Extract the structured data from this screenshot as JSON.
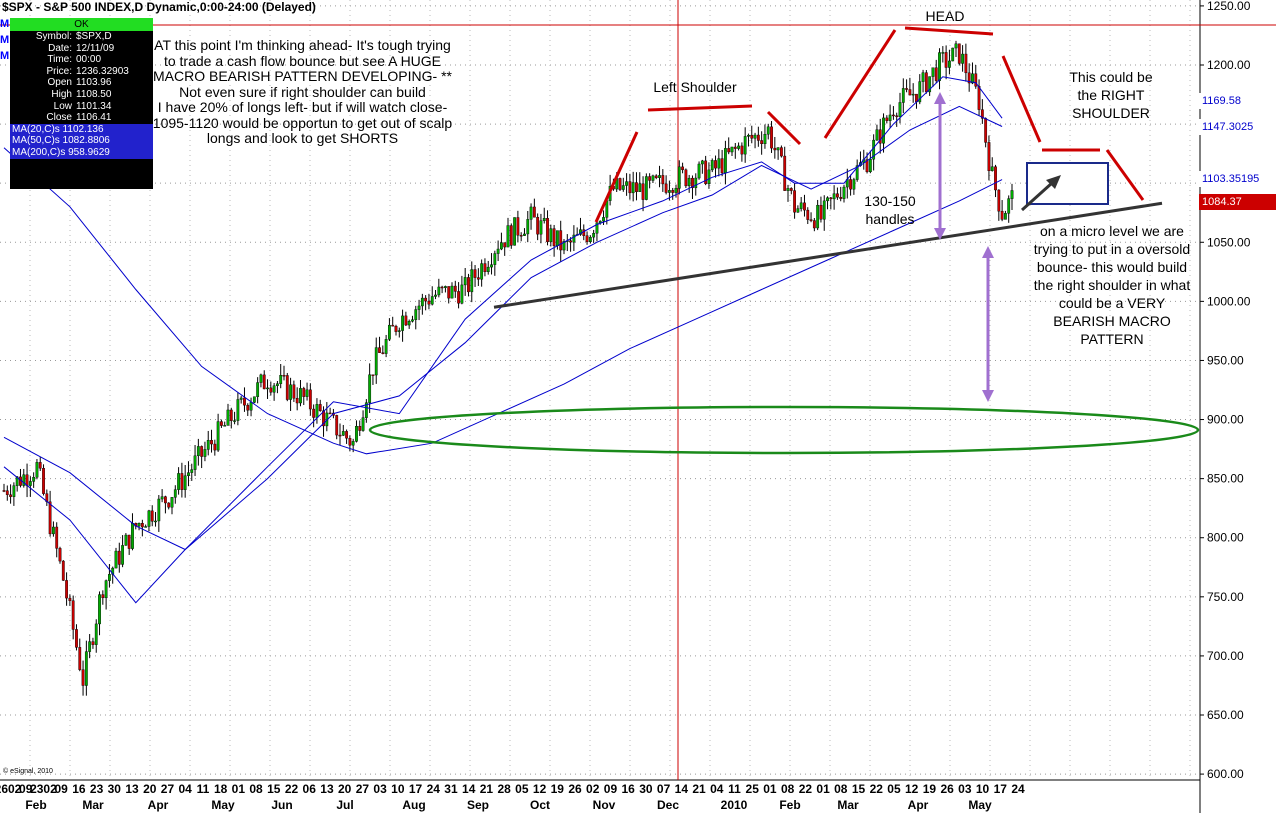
{
  "header": {
    "title": "$SPX - S&P 500 INDEX,D Dynamic,0:00-24:00 (Delayed)"
  },
  "info_panel": {
    "ok_label": "OK",
    "rows": [
      {
        "k": "Symbol:",
        "v": "$SPX,D"
      },
      {
        "k": "Date:",
        "v": "12/11/09"
      },
      {
        "k": "Time:",
        "v": "00:00"
      },
      {
        "k": "Price:",
        "v": "1236.32903"
      },
      {
        "k": "Open",
        "v": "1103.96"
      },
      {
        "k": "High",
        "v": "1108.50"
      },
      {
        "k": "Low",
        "v": "1101.34"
      },
      {
        "k": "Close",
        "v": "1106.41"
      }
    ],
    "ma_rows": [
      "MA(20,C)s 1102.136",
      "MA(50,C)s 1082.8806",
      "MA(200,C)s 958.9629"
    ]
  },
  "side_markers": [
    "M",
    "M",
    "M"
  ],
  "copyright": "© eSignal, 2010",
  "annotations": {
    "commentary": "AT this point I'm thinking ahead-  It's tough trying to trade a cash flow bounce but see A HUGE MACRO BEARISH PATTERN DEVELOPING-  ** Not even sure if right shoulder can build\nI have 20% of longs left- but if will watch close-  1095-1120 would be opportun to get out of scalp longs and look to get SHORTS",
    "left_shoulder": "Left Shoulder",
    "head": "HEAD",
    "right_shoulder": "This could be the RIGHT SHOULDER",
    "handles": "130-150 handles",
    "micro_level": "on a micro level we are trying to put in a oversold bounce- this would build the right shoulder in what could be a VERY BEARISH MACRO PATTERN"
  },
  "price_tags": [
    {
      "text": "1169.58",
      "bg": "#ffffff",
      "color": "#0000cc",
      "value": 1169.58
    },
    {
      "text": "1147.3025",
      "bg": "#ffffff",
      "color": "#0000cc",
      "value": 1147.3025
    },
    {
      "text": "1103.35195",
      "bg": "#ffffff",
      "color": "#0000cc",
      "value": 1103.35195
    },
    {
      "text": "1084.37",
      "bg": "#cc0000",
      "color": "#ffffff",
      "value": 1084.37
    }
  ],
  "chart_data": {
    "type": "candlestick",
    "ylim": [
      595,
      1255
    ],
    "y_ticks": [
      600,
      650,
      700,
      750,
      800,
      850,
      900,
      950,
      1000,
      1050,
      1100,
      1150,
      1200,
      1250
    ],
    "y_tick_labels": [
      "600.00",
      "650.00",
      "700.00",
      "750.00",
      "800.00",
      "850.00",
      "900.00",
      "950.00",
      "1000.00",
      "1050.00",
      "1100.00",
      "1150.00",
      "1200.00",
      "1250.00"
    ],
    "x_day_labels": [
      "2602",
      "09",
      "2302",
      "09",
      "16",
      "23",
      "30",
      "13",
      "20",
      "27",
      "04",
      "11",
      "18",
      "01",
      "08",
      "15",
      "22",
      "06",
      "13",
      "20",
      "27",
      "03",
      "10",
      "17",
      "24",
      "31",
      "14",
      "21",
      "28",
      "05",
      "12",
      "19",
      "26",
      "02",
      "09",
      "16",
      "30",
      "07",
      "14",
      "21",
      "04",
      "11",
      "25",
      "01",
      "08",
      "22",
      "01",
      "08",
      "15",
      "22",
      "05",
      "12",
      "19",
      "26",
      "03",
      "10",
      "17",
      "24"
    ],
    "x_month_labels": [
      "Feb",
      "Mar",
      "Apr",
      "May",
      "Jun",
      "Jul",
      "Aug",
      "Sep",
      "Oct",
      "Nov",
      "Dec",
      "2010",
      "Feb",
      "Mar",
      "Apr",
      "May"
    ],
    "series": [
      {
        "name": "MA(20,C)s",
        "color": "#0000cc",
        "values": [
          {
            "t": 0,
            "v": 860
          },
          {
            "t": 20,
            "v": 815
          },
          {
            "t": 40,
            "v": 745
          },
          {
            "t": 55,
            "v": 790
          },
          {
            "t": 80,
            "v": 860
          },
          {
            "t": 100,
            "v": 915
          },
          {
            "t": 120,
            "v": 905
          },
          {
            "t": 140,
            "v": 985
          },
          {
            "t": 160,
            "v": 1035
          },
          {
            "t": 180,
            "v": 1065
          },
          {
            "t": 200,
            "v": 1085
          },
          {
            "t": 215,
            "v": 1105
          },
          {
            "t": 230,
            "v": 1118
          },
          {
            "t": 240,
            "v": 1100
          },
          {
            "t": 255,
            "v": 1100
          },
          {
            "t": 270,
            "v": 1150
          },
          {
            "t": 285,
            "v": 1190
          },
          {
            "t": 295,
            "v": 1185
          },
          {
            "t": 303,
            "v": 1155
          }
        ]
      },
      {
        "name": "MA(50,C)s",
        "color": "#0000cc",
        "values": [
          {
            "t": 0,
            "v": 885
          },
          {
            "t": 20,
            "v": 855
          },
          {
            "t": 40,
            "v": 810
          },
          {
            "t": 55,
            "v": 790
          },
          {
            "t": 80,
            "v": 850
          },
          {
            "t": 100,
            "v": 905
          },
          {
            "t": 120,
            "v": 920
          },
          {
            "t": 140,
            "v": 965
          },
          {
            "t": 160,
            "v": 1020
          },
          {
            "t": 180,
            "v": 1050
          },
          {
            "t": 200,
            "v": 1075
          },
          {
            "t": 215,
            "v": 1090
          },
          {
            "t": 230,
            "v": 1115
          },
          {
            "t": 245,
            "v": 1095
          },
          {
            "t": 260,
            "v": 1115
          },
          {
            "t": 275,
            "v": 1145
          },
          {
            "t": 290,
            "v": 1165
          },
          {
            "t": 303,
            "v": 1148
          }
        ]
      },
      {
        "name": "MA(200,C)s",
        "color": "#0000cc",
        "values": [
          {
            "t": 0,
            "v": 1130
          },
          {
            "t": 20,
            "v": 1080
          },
          {
            "t": 40,
            "v": 1010
          },
          {
            "t": 60,
            "v": 945
          },
          {
            "t": 80,
            "v": 905
          },
          {
            "t": 100,
            "v": 880
          },
          {
            "t": 110,
            "v": 871
          },
          {
            "t": 130,
            "v": 880
          },
          {
            "t": 150,
            "v": 905
          },
          {
            "t": 170,
            "v": 930
          },
          {
            "t": 190,
            "v": 960
          },
          {
            "t": 210,
            "v": 985
          },
          {
            "t": 230,
            "v": 1010
          },
          {
            "t": 250,
            "v": 1035
          },
          {
            "t": 270,
            "v": 1060
          },
          {
            "t": 290,
            "v": 1085
          },
          {
            "t": 303,
            "v": 1103
          }
        ]
      }
    ],
    "close_path": [
      {
        "t": 0,
        "v": 840
      },
      {
        "t": 10,
        "v": 860
      },
      {
        "t": 18,
        "v": 765
      },
      {
        "t": 24,
        "v": 680
      },
      {
        "t": 30,
        "v": 760
      },
      {
        "t": 40,
        "v": 810
      },
      {
        "t": 50,
        "v": 835
      },
      {
        "t": 60,
        "v": 870
      },
      {
        "t": 70,
        "v": 905
      },
      {
        "t": 80,
        "v": 935
      },
      {
        "t": 90,
        "v": 920
      },
      {
        "t": 100,
        "v": 895
      },
      {
        "t": 106,
        "v": 880
      },
      {
        "t": 112,
        "v": 945
      },
      {
        "t": 120,
        "v": 985
      },
      {
        "t": 130,
        "v": 1005
      },
      {
        "t": 140,
        "v": 1010
      },
      {
        "t": 150,
        "v": 1050
      },
      {
        "t": 160,
        "v": 1070
      },
      {
        "t": 170,
        "v": 1045
      },
      {
        "t": 178,
        "v": 1060
      },
      {
        "t": 185,
        "v": 1095
      },
      {
        "t": 195,
        "v": 1095
      },
      {
        "t": 205,
        "v": 1105
      },
      {
        "t": 215,
        "v": 1110
      },
      {
        "t": 225,
        "v": 1135
      },
      {
        "t": 232,
        "v": 1145
      },
      {
        "t": 240,
        "v": 1080
      },
      {
        "t": 248,
        "v": 1070
      },
      {
        "t": 255,
        "v": 1100
      },
      {
        "t": 262,
        "v": 1120
      },
      {
        "t": 270,
        "v": 1165
      },
      {
        "t": 278,
        "v": 1180
      },
      {
        "t": 284,
        "v": 1200
      },
      {
        "t": 290,
        "v": 1210
      },
      {
        "t": 296,
        "v": 1170
      },
      {
        "t": 300,
        "v": 1105
      },
      {
        "t": 303,
        "v": 1075
      },
      {
        "t": 306,
        "v": 1087
      }
    ]
  }
}
